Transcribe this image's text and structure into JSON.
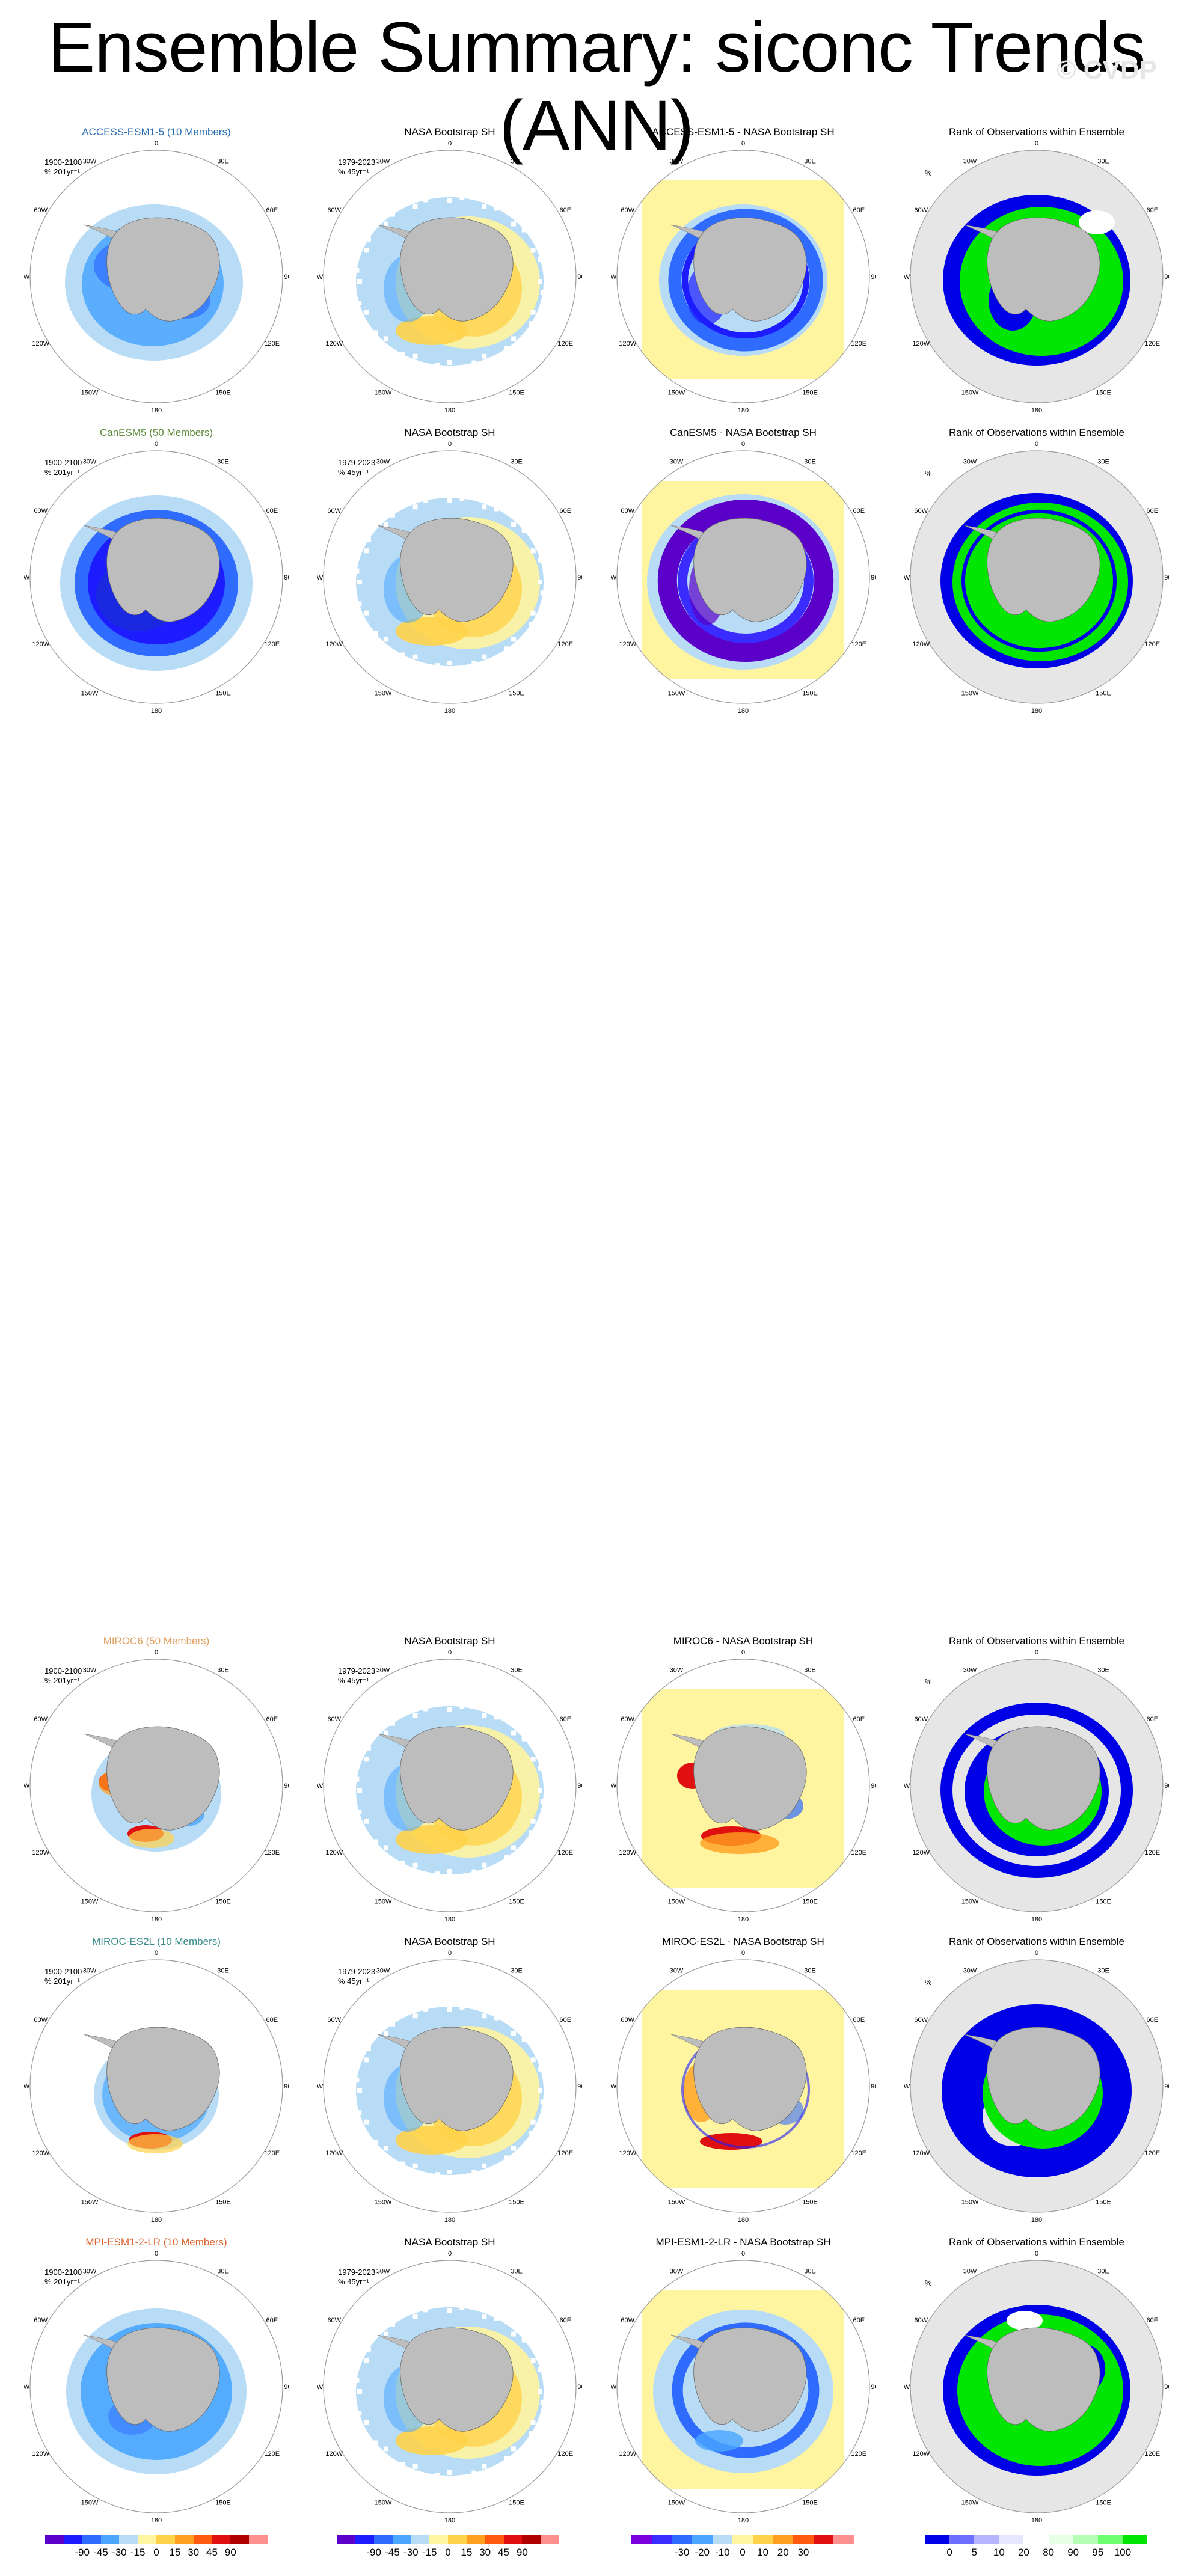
{
  "page": {
    "title": "Ensemble Summary: siconc Trends (ANN)",
    "watermark": "© CVDP"
  },
  "map": {
    "lon_labels": [
      "0",
      "30E",
      "60E",
      "90E",
      "120E",
      "150E",
      "180",
      "150W",
      "120W",
      "90W",
      "60W",
      "30W"
    ],
    "land_color": "#bdbdbd",
    "circle_color": "#9a9a9a"
  },
  "rows": [
    {
      "model": "ACCESS-ESM1-5 (10 Members)",
      "model_color": "#2a6fb0",
      "ens_title": "ACCESS-ESM1-5 (10 Members)",
      "obs_title": "NASA Bootstrap SH",
      "diff_title": "ACCESS-ESM1-5 - NASA Bootstrap SH",
      "rank_title": "Rank of Observations within Ensemble",
      "ens_period": "1900-2100",
      "ens_units": "% 201yr⁻¹",
      "obs_period": "1979-2023",
      "obs_units": "% 45yr⁻¹",
      "rank_units": "%"
    },
    {
      "model": "CanESM5 (50 Members)",
      "model_color": "#5c8a3a",
      "ens_title": "CanESM5 (50 Members)",
      "obs_title": "NASA Bootstrap SH",
      "diff_title": "CanESM5 - NASA Bootstrap SH",
      "rank_title": "Rank of Observations within Ensemble",
      "ens_period": "1900-2100",
      "ens_units": "% 201yr⁻¹",
      "obs_period": "1979-2023",
      "obs_units": "% 45yr⁻¹",
      "rank_units": "%"
    },
    {
      "model": "MIROC6 (50 Members)",
      "model_color": "#e0a060",
      "ens_title": "MIROC6 (50 Members)",
      "obs_title": "NASA Bootstrap SH",
      "diff_title": "MIROC6 - NASA Bootstrap SH",
      "rank_title": "Rank of Observations within Ensemble",
      "ens_period": "1900-2100",
      "ens_units": "% 201yr⁻¹",
      "obs_period": "1979-2023",
      "obs_units": "% 45yr⁻¹",
      "rank_units": "%"
    },
    {
      "model": "MIROC-ES2L (10 Members)",
      "model_color": "#3a8a8a",
      "ens_title": "MIROC-ES2L (10 Members)",
      "obs_title": "NASA Bootstrap SH",
      "diff_title": "MIROC-ES2L - NASA Bootstrap SH",
      "rank_title": "Rank of Observations within Ensemble",
      "ens_period": "1900-2100",
      "ens_units": "% 201yr⁻¹",
      "obs_period": "1979-2023",
      "obs_units": "% 45yr⁻¹",
      "rank_units": "%"
    },
    {
      "model": "MPI-ESM1-2-LR (10 Members)",
      "model_color": "#d9622b",
      "ens_title": "MPI-ESM1-2-LR (10 Members)",
      "obs_title": "NASA Bootstrap SH",
      "diff_title": "MPI-ESM1-2-LR - NASA Bootstrap SH",
      "rank_title": "Rank of Observations within Ensemble",
      "ens_period": "1900-2100",
      "ens_units": "% 201yr⁻¹",
      "obs_period": "1979-2023",
      "obs_units": "% 45yr⁻¹",
      "rank_units": "%"
    }
  ],
  "chart_data": [
    {
      "type": "heatmap",
      "name": "trend colorbar",
      "tick_labels": [
        "-90",
        "-45",
        "-30",
        "-15",
        "0",
        "15",
        "30",
        "45",
        "90"
      ],
      "colors": [
        "#5a00c8",
        "#1c1cff",
        "#2f6bff",
        "#4aa6ff",
        "#b8dcf5",
        "#fff4a0",
        "#ffd24a",
        "#ffa020",
        "#ff5a10",
        "#e01010",
        "#b00000",
        "#ff9090"
      ]
    },
    {
      "type": "heatmap",
      "name": "difference colorbar",
      "tick_labels": [
        "-30",
        "-20",
        "-10",
        "0",
        "10",
        "20",
        "30"
      ],
      "colors": [
        "#7a00e0",
        "#3a2cff",
        "#2f6bff",
        "#4aa6ff",
        "#b8dcf5",
        "#fff4a0",
        "#ffd24a",
        "#ffa020",
        "#ff5a10",
        "#e01010",
        "#ff9090"
      ]
    },
    {
      "type": "heatmap",
      "name": "rank colorbar",
      "tick_labels": [
        "0",
        "5",
        "10",
        "20",
        "80",
        "90",
        "95",
        "100"
      ],
      "colors": [
        "#0000e6",
        "#6e6eff",
        "#b4b4ff",
        "#e6e6ff",
        "#ffffff",
        "#e6ffe6",
        "#b4ffb4",
        "#6eff6e",
        "#00e600"
      ]
    }
  ]
}
